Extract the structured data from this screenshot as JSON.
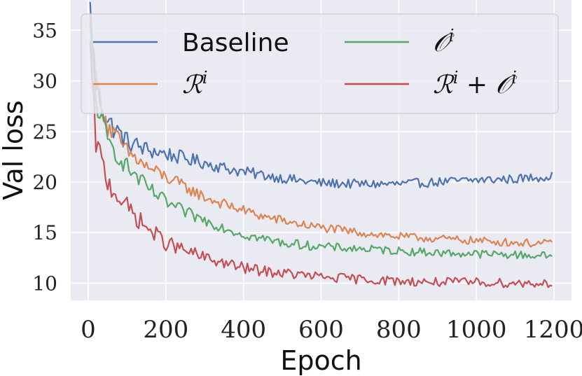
{
  "chart_data": {
    "type": "line",
    "title": "",
    "xlabel": "Epoch",
    "ylabel": "Val loss",
    "xlim": [
      -45,
      1245
    ],
    "ylim": [
      8.3,
      38
    ],
    "xticks": [
      0,
      200,
      400,
      600,
      800,
      1000,
      1200
    ],
    "yticks": [
      10,
      15,
      20,
      25,
      30,
      35
    ],
    "grid": true,
    "legend_position": "top",
    "series": [
      {
        "name": "Baseline",
        "label": "Baseline",
        "color": "#4c72b0",
        "final_level": 20.3,
        "noise": 0.45,
        "x": [
          5,
          20,
          50,
          100,
          150,
          200,
          250,
          300,
          350,
          400,
          450,
          500,
          550,
          600,
          700,
          800,
          900,
          1000,
          1100,
          1200
        ],
        "y": [
          37.2,
          29.5,
          26.0,
          24.0,
          23.2,
          22.8,
          22.3,
          21.9,
          21.4,
          21.0,
          20.7,
          20.4,
          20.1,
          19.9,
          19.8,
          19.8,
          20.0,
          20.2,
          20.3,
          20.6
        ]
      },
      {
        "name": "R^i",
        "label_main": "ℛ",
        "label_sup": "i",
        "label_tail": "",
        "color": "#dd8452",
        "final_level": 14.2,
        "noise": 0.4,
        "x": [
          5,
          20,
          50,
          100,
          150,
          200,
          250,
          300,
          350,
          400,
          450,
          500,
          550,
          600,
          700,
          800,
          900,
          1000,
          1100,
          1200
        ],
        "y": [
          36.0,
          30.0,
          25.5,
          23.0,
          21.5,
          20.5,
          19.5,
          18.5,
          17.8,
          17.2,
          16.6,
          16.2,
          15.8,
          15.5,
          15.0,
          14.6,
          14.4,
          14.2,
          14.0,
          13.9
        ]
      },
      {
        "name": "O^i",
        "label_main": "𝒪",
        "label_sup": "i",
        "label_tail": "",
        "color": "#55a868",
        "final_level": 12.8,
        "noise": 0.4,
        "x": [
          5,
          20,
          50,
          100,
          150,
          200,
          250,
          300,
          350,
          400,
          450,
          500,
          550,
          600,
          700,
          800,
          900,
          1000,
          1100,
          1200
        ],
        "y": [
          35.0,
          28.0,
          24.0,
          21.5,
          19.5,
          18.0,
          17.0,
          16.2,
          15.5,
          14.8,
          14.4,
          14.0,
          13.8,
          13.6,
          13.4,
          13.2,
          13.0,
          12.9,
          12.8,
          12.7
        ]
      },
      {
        "name": "R^i + O^i",
        "label_main": "ℛ",
        "label_sup": "i",
        "label_tail": " + 𝒪",
        "label_tail_sup": "i",
        "color": "#c44e52",
        "final_level": 10.1,
        "noise": 0.45,
        "x": [
          5,
          20,
          50,
          100,
          150,
          200,
          250,
          300,
          350,
          400,
          450,
          500,
          550,
          600,
          700,
          800,
          900,
          1000,
          1100,
          1200
        ],
        "y": [
          33.0,
          24.0,
          20.0,
          17.5,
          15.5,
          14.0,
          13.2,
          12.5,
          12.0,
          11.5,
          11.2,
          11.0,
          10.8,
          10.6,
          10.4,
          10.2,
          10.1,
          10.1,
          10.0,
          10.0
        ]
      }
    ]
  }
}
